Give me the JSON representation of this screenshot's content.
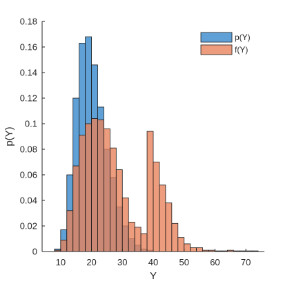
{
  "chart_data": {
    "type": "bar",
    "xlabel": "Y",
    "ylabel": "p(Y)",
    "xlim": [
      4,
      76
    ],
    "ylim": [
      0,
      0.18
    ],
    "xticks": [
      10,
      20,
      30,
      40,
      50,
      60,
      70
    ],
    "yticks": [
      0,
      0.02,
      0.04,
      0.06,
      0.08,
      0.1,
      0.12,
      0.14,
      0.16,
      0.18
    ],
    "ytick_labels": [
      "0",
      "0.02",
      "0.04",
      "0.06",
      "0.08",
      "0.1",
      "0.12",
      "0.14",
      "0.16",
      "0.18"
    ],
    "grid": false,
    "legend_position": "top-right",
    "series": [
      {
        "name": "p(Y)",
        "color": "#4e97d1",
        "alpha": 0.9,
        "bins": [
          {
            "x0": 8,
            "x1": 10,
            "value": 0.002
          },
          {
            "x0": 10,
            "x1": 12,
            "value": 0.017
          },
          {
            "x0": 12,
            "x1": 14,
            "value": 0.06
          },
          {
            "x0": 14,
            "x1": 16,
            "value": 0.12
          },
          {
            "x0": 16,
            "x1": 18,
            "value": 0.163
          },
          {
            "x0": 18,
            "x1": 20,
            "value": 0.168
          },
          {
            "x0": 20,
            "x1": 22,
            "value": 0.146
          },
          {
            "x0": 22,
            "x1": 24,
            "value": 0.113
          },
          {
            "x0": 24,
            "x1": 26,
            "value": 0.08
          },
          {
            "x0": 26,
            "x1": 28,
            "value": 0.058
          },
          {
            "x0": 28,
            "x1": 30,
            "value": 0.035
          },
          {
            "x0": 30,
            "x1": 32,
            "value": 0.02
          },
          {
            "x0": 32,
            "x1": 34,
            "value": 0.01
          },
          {
            "x0": 34,
            "x1": 36,
            "value": 0.005
          },
          {
            "x0": 36,
            "x1": 38,
            "value": 0.002
          },
          {
            "x0": 38,
            "x1": 40,
            "value": 0.001
          }
        ]
      },
      {
        "name": "f(Y)",
        "color": "#e8815a",
        "alpha": 0.78,
        "bins": [
          {
            "x0": 8,
            "x1": 10,
            "value": 0.001
          },
          {
            "x0": 10,
            "x1": 12,
            "value": 0.009
          },
          {
            "x0": 12,
            "x1": 14,
            "value": 0.032
          },
          {
            "x0": 14,
            "x1": 16,
            "value": 0.067
          },
          {
            "x0": 16,
            "x1": 18,
            "value": 0.091
          },
          {
            "x0": 18,
            "x1": 20,
            "value": 0.1
          },
          {
            "x0": 20,
            "x1": 22,
            "value": 0.104
          },
          {
            "x0": 22,
            "x1": 24,
            "value": 0.103
          },
          {
            "x0": 24,
            "x1": 26,
            "value": 0.096
          },
          {
            "x0": 26,
            "x1": 28,
            "value": 0.081
          },
          {
            "x0": 28,
            "x1": 30,
            "value": 0.064
          },
          {
            "x0": 30,
            "x1": 32,
            "value": 0.042
          },
          {
            "x0": 32,
            "x1": 34,
            "value": 0.023
          },
          {
            "x0": 34,
            "x1": 36,
            "value": 0.019
          },
          {
            "x0": 36,
            "x1": 38,
            "value": 0.014
          },
          {
            "x0": 38,
            "x1": 40,
            "value": 0.094
          },
          {
            "x0": 40,
            "x1": 42,
            "value": 0.07
          },
          {
            "x0": 42,
            "x1": 44,
            "value": 0.052
          },
          {
            "x0": 44,
            "x1": 46,
            "value": 0.038
          },
          {
            "x0": 46,
            "x1": 48,
            "value": 0.022
          },
          {
            "x0": 48,
            "x1": 50,
            "value": 0.011
          },
          {
            "x0": 50,
            "x1": 52,
            "value": 0.006
          },
          {
            "x0": 52,
            "x1": 54,
            "value": 0.003
          },
          {
            "x0": 54,
            "x1": 56,
            "value": 0.003
          },
          {
            "x0": 56,
            "x1": 58,
            "value": 0.001
          },
          {
            "x0": 58,
            "x1": 60,
            "value": 0.001
          },
          {
            "x0": 60,
            "x1": 62,
            "value": 0.0005
          },
          {
            "x0": 62,
            "x1": 64,
            "value": 0.0005
          },
          {
            "x0": 64,
            "x1": 66,
            "value": 0.001
          },
          {
            "x0": 66,
            "x1": 68,
            "value": 0.0005
          },
          {
            "x0": 68,
            "x1": 70,
            "value": 0.0005
          },
          {
            "x0": 70,
            "x1": 72,
            "value": 0.0005
          },
          {
            "x0": 72,
            "x1": 74,
            "value": 0.0005
          }
        ]
      }
    ]
  }
}
